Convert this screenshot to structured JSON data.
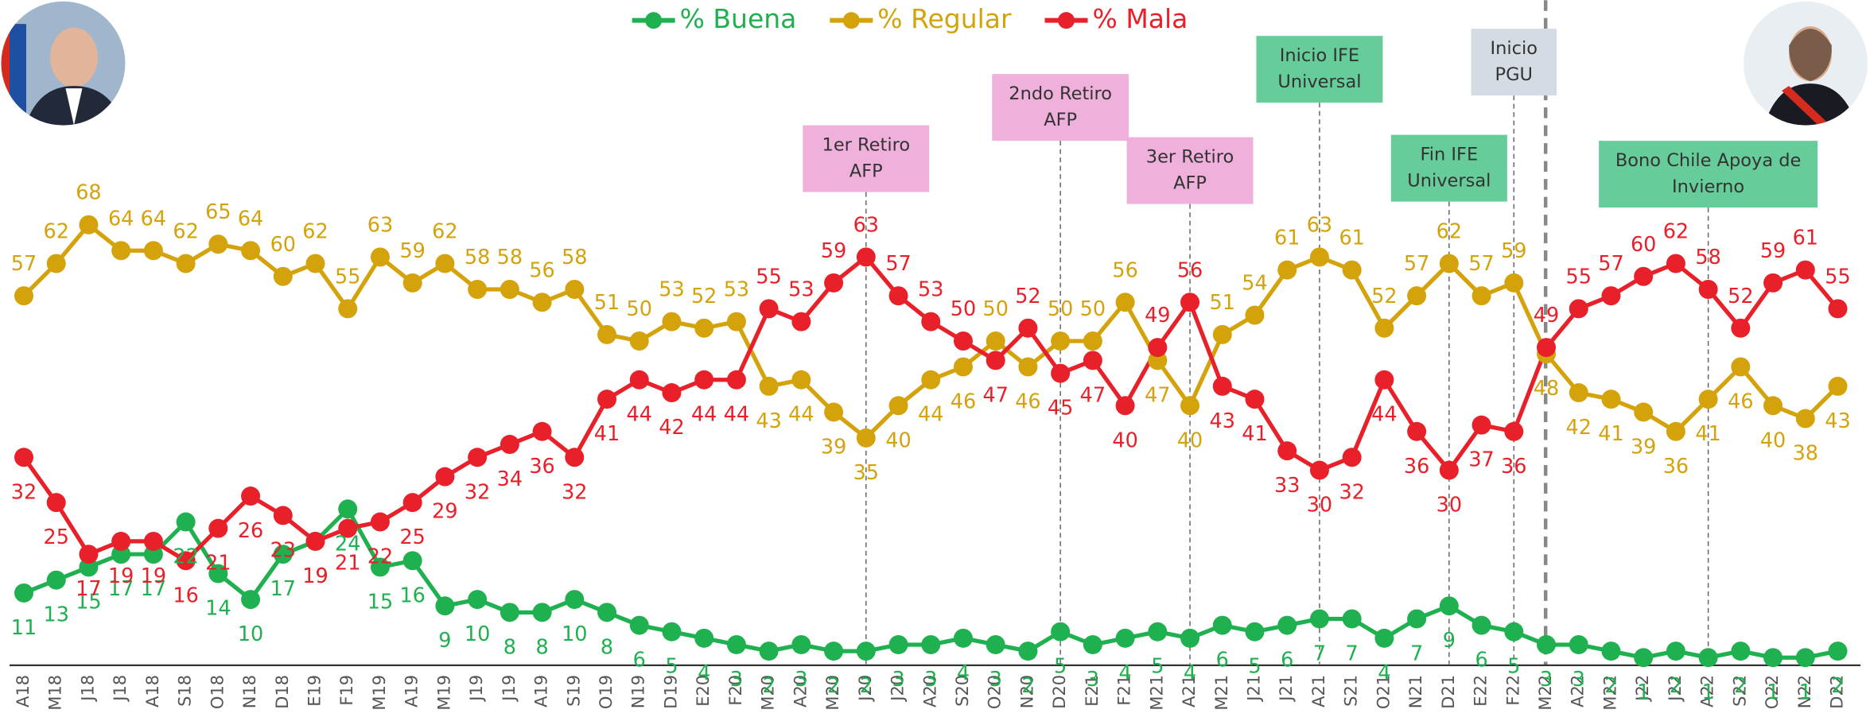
{
  "chart_data": {
    "type": "line",
    "categories": [
      "A18",
      "M18",
      "J18",
      "J18",
      "A18",
      "S18",
      "O18",
      "N18",
      "D18",
      "E19",
      "F19",
      "M19",
      "A19",
      "M19",
      "J19",
      "J19",
      "A19",
      "S19",
      "O19",
      "N19",
      "D19",
      "E20",
      "F20",
      "M20",
      "A20",
      "M20",
      "J20",
      "J20",
      "A20",
      "S20",
      "O20",
      "N20",
      "D20",
      "E21",
      "F21",
      "M21",
      "A21",
      "M21",
      "J21",
      "J21",
      "A21",
      "S21",
      "O21",
      "N21",
      "D21",
      "E22",
      "F22",
      "M22",
      "A22",
      "M22",
      "J22",
      "J22",
      "A22",
      "S22",
      "O22",
      "N22",
      "D22"
    ],
    "series": [
      {
        "name": "% Buena",
        "color": "#1fb050",
        "values": [
          11,
          13,
          15,
          17,
          17,
          22,
          14,
          10,
          17,
          19,
          24,
          15,
          16,
          9,
          10,
          8,
          8,
          10,
          8,
          6,
          5,
          4,
          3,
          2,
          3,
          2,
          2,
          3,
          3,
          4,
          3,
          2,
          5,
          3,
          4,
          5,
          4,
          6,
          5,
          6,
          7,
          7,
          4,
          7,
          9,
          6,
          5,
          3,
          3,
          2,
          1,
          2,
          1,
          2,
          1,
          1,
          2
        ]
      },
      {
        "name": "% Regular",
        "color": "#d4a30c",
        "values": [
          57,
          62,
          68,
          64,
          64,
          62,
          65,
          64,
          60,
          62,
          55,
          63,
          59,
          62,
          58,
          58,
          56,
          58,
          51,
          50,
          53,
          52,
          53,
          43,
          44,
          39,
          35,
          40,
          44,
          46,
          50,
          46,
          50,
          50,
          56,
          47,
          40,
          51,
          54,
          61,
          63,
          61,
          52,
          57,
          62,
          57,
          59,
          48,
          42,
          41,
          39,
          36,
          41,
          46,
          40,
          38,
          43
        ]
      },
      {
        "name": "% Mala",
        "color": "#e8202a",
        "values": [
          32,
          25,
          17,
          19,
          19,
          16,
          21,
          26,
          23,
          19,
          21,
          22,
          25,
          29,
          32,
          34,
          36,
          32,
          41,
          44,
          42,
          44,
          44,
          55,
          53,
          59,
          63,
          57,
          53,
          50,
          47,
          52,
          45,
          47,
          40,
          49,
          56,
          43,
          41,
          33,
          30,
          32,
          44,
          36,
          30,
          37,
          36,
          49,
          55,
          57,
          60,
          62,
          58,
          52,
          59,
          61,
          55
        ]
      }
    ],
    "ylim": [
      0,
      100
    ],
    "grid": false,
    "legend": "top",
    "annotations": [
      {
        "lines": [
          "1er Retiro",
          "AFP"
        ],
        "category_index": 26,
        "color": "#f0b0dc"
      },
      {
        "lines": [
          "2ndo Retiro",
          "AFP"
        ],
        "category_index": 32,
        "color": "#f0b0dc"
      },
      {
        "lines": [
          "3er Retiro",
          "AFP"
        ],
        "category_index": 36,
        "color": "#f0b0dc"
      },
      {
        "lines": [
          "Inicio IFE",
          "Universal"
        ],
        "category_index": 40,
        "color": "#66cc99"
      },
      {
        "lines": [
          "Fin IFE",
          "Universal"
        ],
        "category_index": 44,
        "color": "#66cc99"
      },
      {
        "lines": [
          "Inicio",
          "PGU"
        ],
        "category_index": 46,
        "color": "#d5dbe3"
      },
      {
        "lines": [
          "Bono Chile Apoya de",
          "Invierno"
        ],
        "category_index": 52,
        "color": "#66cc99"
      }
    ]
  }
}
